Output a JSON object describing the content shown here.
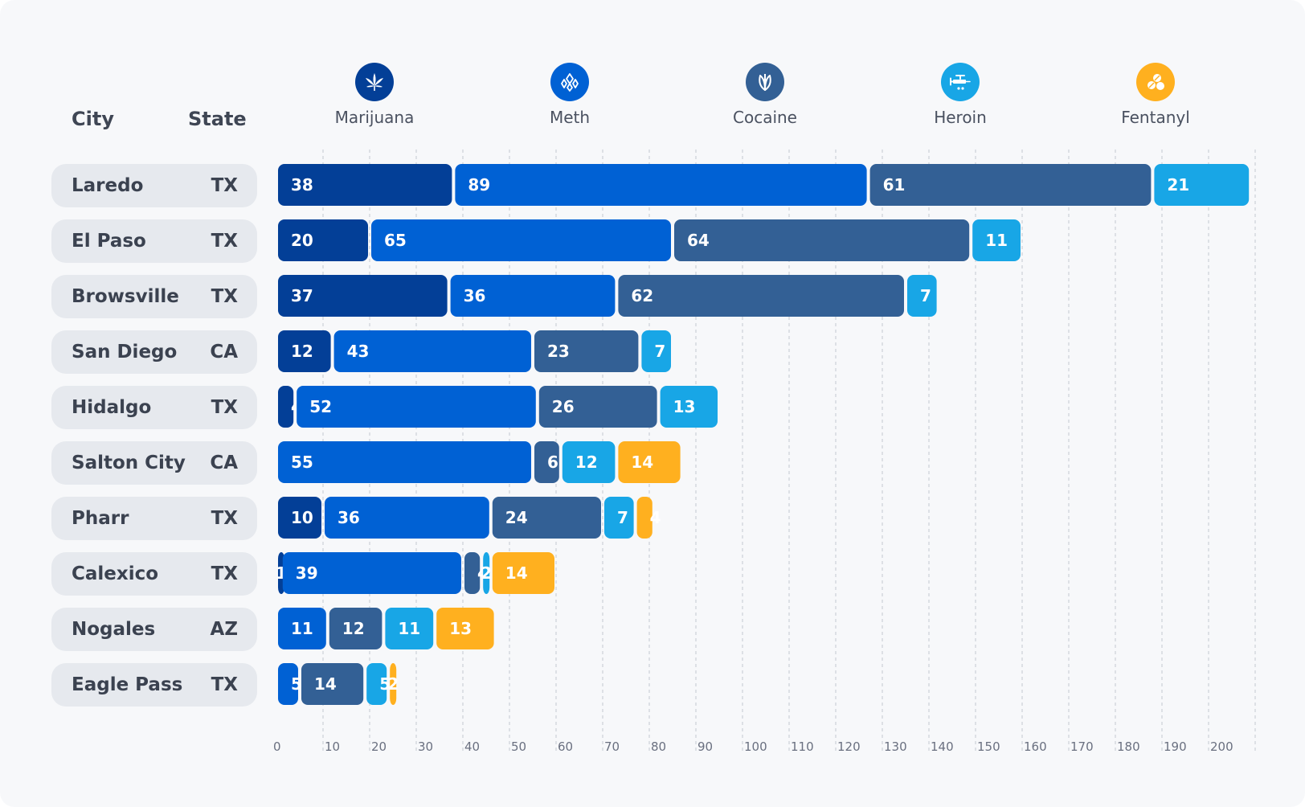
{
  "header": {
    "city_label": "City",
    "state_label": "State"
  },
  "chart_data": {
    "type": "bar",
    "orientation": "horizontal",
    "stacked": true,
    "categories": [
      "Laredo",
      "El Paso",
      "Browsville",
      "San Diego",
      "Hidalgo",
      "Salton City",
      "Pharr",
      "Calexico",
      "Nogales",
      "Eagle Pass"
    ],
    "states": [
      "TX",
      "TX",
      "TX",
      "CA",
      "TX",
      "CA",
      "TX",
      "TX",
      "AZ",
      "TX"
    ],
    "series": [
      {
        "name": "Marijuana",
        "color": "#033f97",
        "icon": "cannabis-leaf-icon",
        "values": [
          38,
          20,
          37,
          12,
          4,
          null,
          10,
          1,
          null,
          null
        ]
      },
      {
        "name": "Meth",
        "color": "#0061d4",
        "icon": "crystals-icon",
        "values": [
          89,
          65,
          36,
          43,
          52,
          55,
          36,
          39,
          11,
          5
        ]
      },
      {
        "name": "Cocaine",
        "color": "#336095",
        "icon": "plant-icon",
        "values": [
          61,
          64,
          62,
          23,
          26,
          6,
          24,
          4,
          12,
          14
        ]
      },
      {
        "name": "Heroin",
        "color": "#18a6e6",
        "icon": "syringe-icon",
        "values": [
          21,
          11,
          7,
          7,
          13,
          12,
          7,
          2,
          11,
          5
        ]
      },
      {
        "name": "Fentanyl",
        "color": "#ffb01f",
        "icon": "pills-icon",
        "values": [
          null,
          null,
          null,
          null,
          null,
          14,
          4,
          14,
          13,
          2
        ]
      }
    ],
    "x_ticks": [
      "0",
      "10",
      "20",
      "30",
      "40",
      "50",
      "60",
      "70",
      "80",
      "90",
      "100",
      "110",
      "120",
      "130",
      "140",
      "150",
      "160",
      "170",
      "180",
      "190",
      "200"
    ],
    "xlim": [
      0,
      210
    ],
    "grid": "vertical dashed",
    "legend": "top"
  }
}
